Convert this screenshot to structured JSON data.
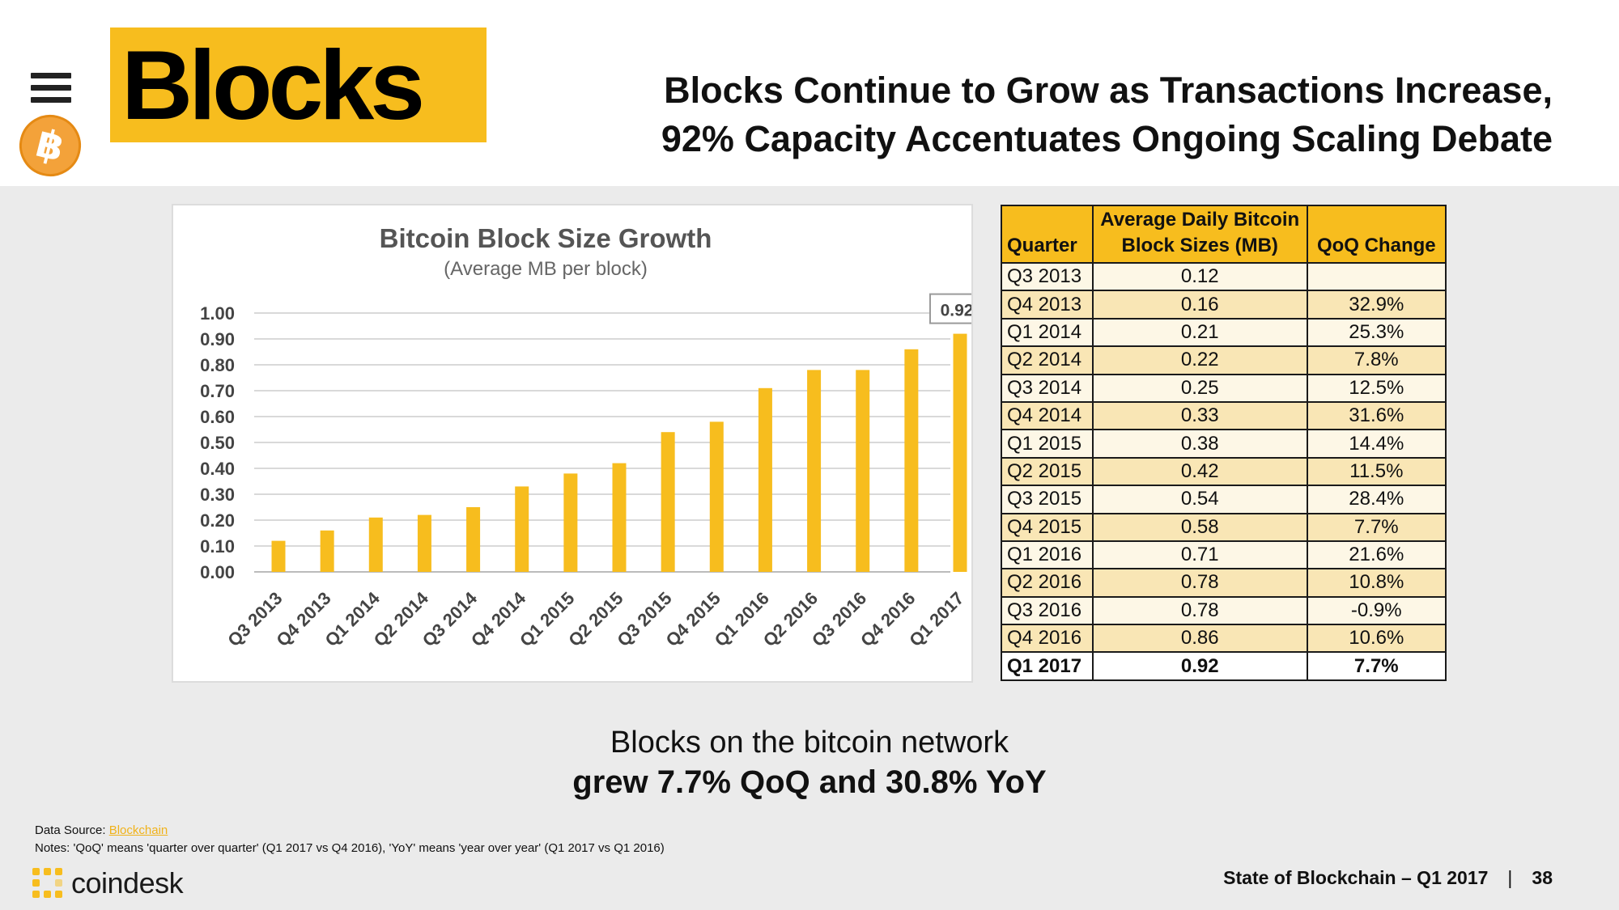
{
  "header": {
    "section_title": "Blocks",
    "headline_line1": "Blocks Continue to Grow as Transactions Increase,",
    "headline_line2": "92% Capacity Accentuates Ongoing Scaling Debate",
    "bitcoin_symbol": "฿"
  },
  "chart_data": {
    "type": "bar",
    "title": "Bitcoin Block Size Growth",
    "subtitle": "(Average MB per block)",
    "categories": [
      "Q3 2013",
      "Q4 2013",
      "Q1 2014",
      "Q2 2014",
      "Q3 2014",
      "Q4 2014",
      "Q1 2015",
      "Q2 2015",
      "Q3 2015",
      "Q4 2015",
      "Q1 2016",
      "Q2 2016",
      "Q3 2016",
      "Q4 2016",
      "Q1 2017"
    ],
    "values": [
      0.12,
      0.16,
      0.21,
      0.22,
      0.25,
      0.33,
      0.38,
      0.42,
      0.54,
      0.58,
      0.71,
      0.78,
      0.78,
      0.86,
      0.92
    ],
    "yticks": [
      "0.00",
      "0.10",
      "0.20",
      "0.30",
      "0.40",
      "0.50",
      "0.60",
      "0.70",
      "0.80",
      "0.90",
      "1.00"
    ],
    "ylim": [
      0,
      1.0
    ],
    "callout": "0.92",
    "bar_color": "#f7bd1e",
    "grid": true
  },
  "table": {
    "headers": [
      "Quarter",
      "Average Daily Bitcoin Block Sizes (MB)",
      "QoQ Change"
    ],
    "rows": [
      {
        "quarter": "Q3 2013",
        "size": "0.12",
        "change": ""
      },
      {
        "quarter": "Q4 2013",
        "size": "0.16",
        "change": "32.9%"
      },
      {
        "quarter": "Q1 2014",
        "size": "0.21",
        "change": "25.3%"
      },
      {
        "quarter": "Q2 2014",
        "size": "0.22",
        "change": "7.8%"
      },
      {
        "quarter": "Q3 2014",
        "size": "0.25",
        "change": "12.5%"
      },
      {
        "quarter": "Q4 2014",
        "size": "0.33",
        "change": "31.6%"
      },
      {
        "quarter": "Q1 2015",
        "size": "0.38",
        "change": "14.4%"
      },
      {
        "quarter": "Q2 2015",
        "size": "0.42",
        "change": "11.5%"
      },
      {
        "quarter": "Q3 2015",
        "size": "0.54",
        "change": "28.4%"
      },
      {
        "quarter": "Q4 2015",
        "size": "0.58",
        "change": "7.7%"
      },
      {
        "quarter": "Q1 2016",
        "size": "0.71",
        "change": "21.6%"
      },
      {
        "quarter": "Q2 2016",
        "size": "0.78",
        "change": "10.8%"
      },
      {
        "quarter": "Q3 2016",
        "size": "0.78",
        "change": "-0.9%"
      },
      {
        "quarter": "Q4 2016",
        "size": "0.86",
        "change": "10.6%"
      },
      {
        "quarter": "Q1 2017",
        "size": "0.92",
        "change": "7.7%"
      }
    ]
  },
  "summary": {
    "line1": "Blocks on the bitcoin network",
    "line2": "grew 7.7% QoQ and 30.8% YoY"
  },
  "footer": {
    "source_label": "Data Source:",
    "source_link": "Blockchain",
    "notes": "Notes: 'QoQ' means 'quarter over quarter' (Q1 2017 vs Q4 2016), 'YoY' means 'year over year' (Q1 2017 vs Q1 2016)",
    "brand": "coindesk",
    "report": "State of Blockchain – Q1 2017",
    "separator": "|",
    "page_number": "38"
  },
  "colors": {
    "accent": "#f7bd1e",
    "bitcoin": "#f3a23a"
  }
}
